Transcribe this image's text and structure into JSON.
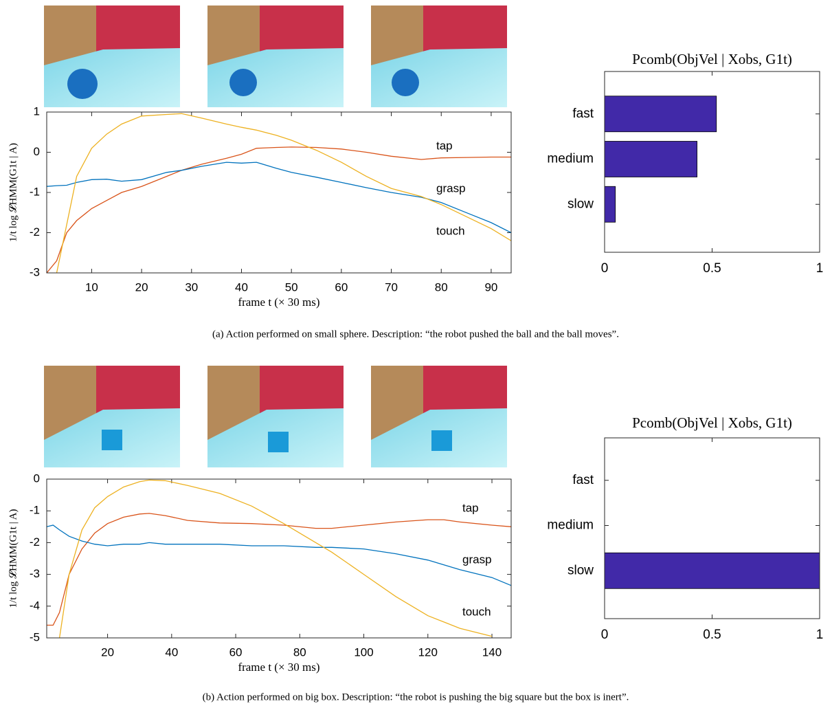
{
  "chart_data": [
    {
      "type": "line",
      "xlabel": "frame t (× 30 ms)",
      "ylabel": "1/t log 𝓛HMM(G1t | A)",
      "x": [
        1,
        3,
        5,
        7,
        10,
        13,
        16,
        20,
        25,
        28,
        32,
        37,
        40,
        43,
        47,
        50,
        55,
        60,
        65,
        70,
        76,
        80,
        85,
        90,
        94
      ],
      "xlim": [
        1,
        94
      ],
      "xticks": [
        10,
        20,
        30,
        40,
        50,
        60,
        70,
        80,
        90
      ],
      "ylim": [
        -3,
        1
      ],
      "yticks": [
        -3,
        -2,
        -1,
        0,
        1
      ],
      "series": [
        {
          "name": "tap",
          "color": "#d95319",
          "values": [
            -3.0,
            -2.7,
            -2.0,
            -1.7,
            -1.4,
            -1.2,
            -1.0,
            -0.85,
            -0.6,
            -0.45,
            -0.3,
            -0.15,
            -0.05,
            0.1,
            0.12,
            0.13,
            0.12,
            0.08,
            0.0,
            -0.1,
            -0.18,
            -0.14,
            -0.13,
            -0.12,
            -0.12
          ]
        },
        {
          "name": "grasp",
          "color": "#0072bd",
          "values": [
            -0.85,
            -0.83,
            -0.82,
            -0.75,
            -0.68,
            -0.67,
            -0.72,
            -0.68,
            -0.5,
            -0.45,
            -0.35,
            -0.25,
            -0.27,
            -0.25,
            -0.4,
            -0.5,
            -0.62,
            -0.75,
            -0.88,
            -1.0,
            -1.12,
            -1.25,
            -1.5,
            -1.75,
            -2.0
          ]
        },
        {
          "name": "touch",
          "color": "#edb120",
          "values": [
            null,
            -3.0,
            -1.8,
            -0.6,
            0.1,
            0.45,
            0.7,
            0.9,
            0.94,
            0.96,
            0.85,
            0.7,
            0.62,
            0.55,
            0.42,
            0.3,
            0.05,
            -0.25,
            -0.6,
            -0.9,
            -1.1,
            -1.3,
            -1.6,
            -1.9,
            -2.2
          ]
        }
      ]
    },
    {
      "type": "hbar",
      "title": "Pcomb(ObjVel | Xobs, G1t)",
      "categories": [
        "fast",
        "medium",
        "slow"
      ],
      "values": [
        0.52,
        0.43,
        0.05
      ],
      "color": "#4129a8",
      "xlim": [
        0,
        1
      ],
      "xticks": [
        0,
        0.5,
        1
      ]
    },
    {
      "type": "line",
      "xlabel": "frame t (× 30 ms)",
      "ylabel": "1/t log 𝓛HMM(G1t | A)",
      "x": [
        1,
        3,
        5,
        8,
        12,
        16,
        20,
        25,
        30,
        33,
        38,
        45,
        55,
        65,
        75,
        85,
        90,
        100,
        110,
        120,
        125,
        130,
        140,
        146
      ],
      "xlim": [
        1,
        146
      ],
      "xticks": [
        20,
        40,
        60,
        80,
        100,
        120,
        140
      ],
      "ylim": [
        -5,
        0
      ],
      "yticks": [
        -5,
        -4,
        -3,
        -2,
        -1,
        0
      ],
      "series": [
        {
          "name": "tap",
          "color": "#d95319",
          "values": [
            -4.6,
            -4.6,
            -4.2,
            -3.0,
            -2.2,
            -1.7,
            -1.4,
            -1.2,
            -1.1,
            -1.08,
            -1.15,
            -1.3,
            -1.38,
            -1.4,
            -1.45,
            -1.55,
            -1.55,
            -1.45,
            -1.35,
            -1.28,
            -1.28,
            -1.35,
            -1.45,
            -1.5
          ]
        },
        {
          "name": "grasp",
          "color": "#0072bd",
          "values": [
            -1.5,
            -1.45,
            -1.6,
            -1.8,
            -1.95,
            -2.05,
            -2.1,
            -2.05,
            -2.05,
            -2.0,
            -2.05,
            -2.05,
            -2.05,
            -2.1,
            -2.1,
            -2.15,
            -2.15,
            -2.2,
            -2.35,
            -2.55,
            -2.7,
            -2.85,
            -3.1,
            -3.35
          ]
        },
        {
          "name": "touch",
          "color": "#edb120",
          "values": [
            null,
            null,
            -5.0,
            -3.0,
            -1.6,
            -0.9,
            -0.55,
            -0.25,
            -0.08,
            -0.03,
            -0.05,
            -0.2,
            -0.45,
            -0.85,
            -1.4,
            -2.0,
            -2.3,
            -3.0,
            -3.7,
            -4.3,
            -4.5,
            -4.7,
            -4.95,
            null
          ]
        }
      ]
    },
    {
      "type": "hbar",
      "title": "Pcomb(ObjVel | Xobs, G1t)",
      "categories": [
        "fast",
        "medium",
        "slow"
      ],
      "values": [
        0,
        0,
        1
      ],
      "color": "#4129a8",
      "xlim": [
        0,
        1
      ],
      "xticks": [
        0,
        0.5,
        1
      ]
    }
  ],
  "captions": [
    "(a) Action performed on small sphere. Description: “the robot pushed the ball and the ball moves”.",
    "(b) Action performed on big box. Description: “the robot is pushing the big square but the box is inert”."
  ]
}
